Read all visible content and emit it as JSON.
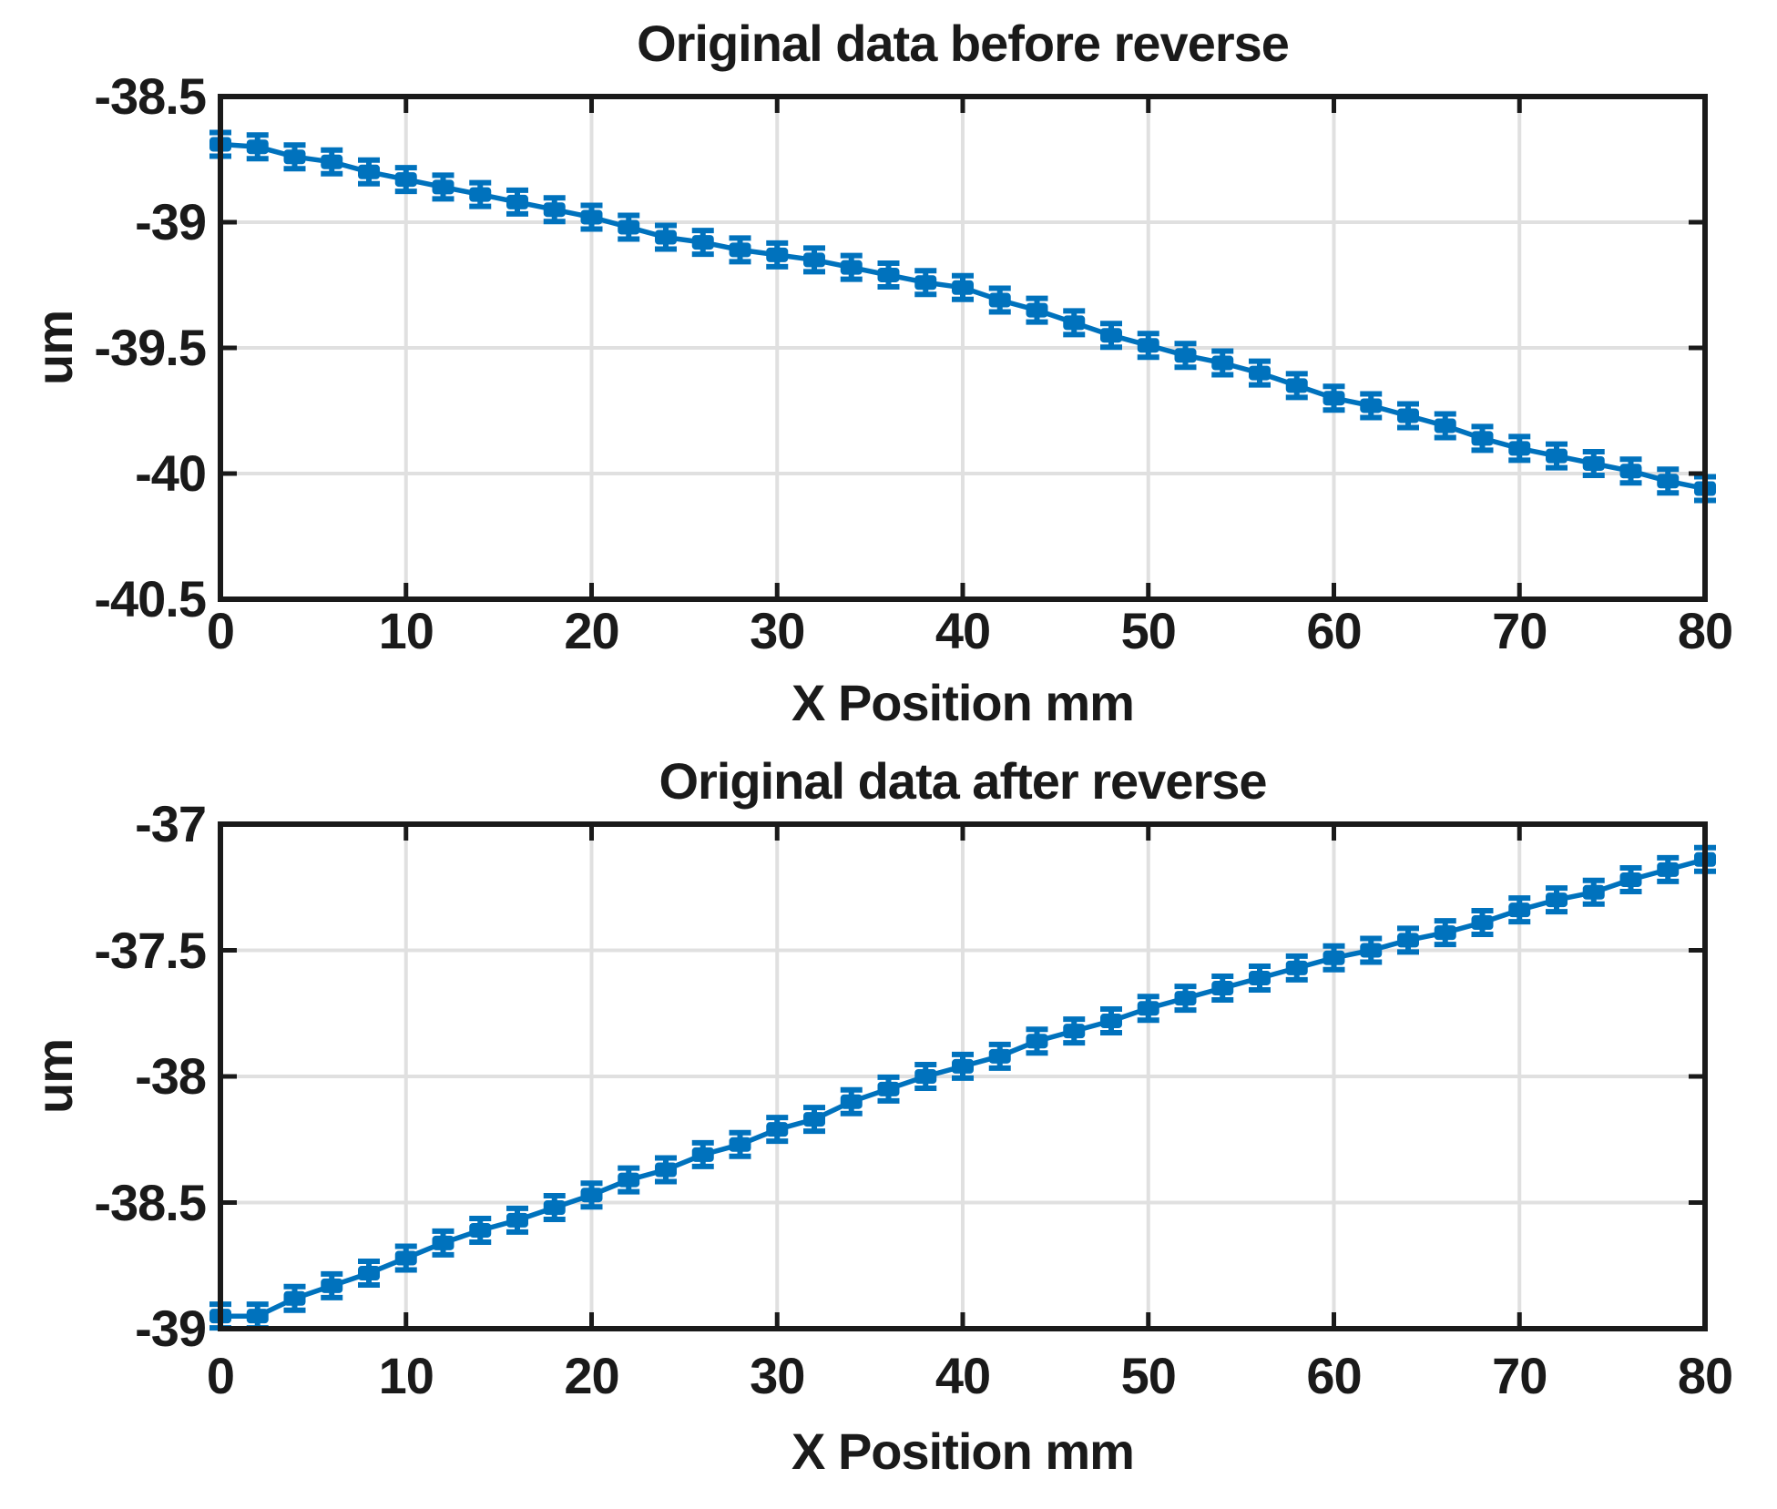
{
  "figure": {
    "background": "#ffffff"
  },
  "colors": {
    "line": "#0072BD",
    "grid": "#e0e0e0",
    "axis": "#1a1a1a",
    "text": "#1a1a1a"
  },
  "chart_data": [
    {
      "type": "line",
      "title": "Original data before reverse",
      "xlabel": "X Position mm",
      "ylabel": "um",
      "xlim": [
        0,
        80
      ],
      "ylim": [
        -40.5,
        -38.5
      ],
      "x_ticks": [
        0,
        10,
        20,
        30,
        40,
        50,
        60,
        70,
        80
      ],
      "y_ticks": [
        -38.5,
        -39,
        -39.5,
        -40,
        -40.5
      ],
      "grid": true,
      "legend_position": "none",
      "marker": "point-with-error-caps",
      "x": [
        0,
        2,
        4,
        6,
        8,
        10,
        12,
        14,
        16,
        18,
        20,
        22,
        24,
        26,
        28,
        30,
        32,
        34,
        36,
        38,
        40,
        42,
        44,
        46,
        48,
        50,
        52,
        54,
        56,
        58,
        60,
        62,
        64,
        66,
        68,
        70,
        72,
        74,
        76,
        78,
        80
      ],
      "y": [
        -38.69,
        -38.7,
        -38.74,
        -38.76,
        -38.8,
        -38.83,
        -38.86,
        -38.89,
        -38.92,
        -38.95,
        -38.98,
        -39.02,
        -39.06,
        -39.08,
        -39.11,
        -39.13,
        -39.15,
        -39.18,
        -39.21,
        -39.24,
        -39.26,
        -39.31,
        -39.35,
        -39.4,
        -39.45,
        -39.49,
        -39.53,
        -39.56,
        -39.6,
        -39.65,
        -39.7,
        -39.73,
        -39.77,
        -39.81,
        -39.86,
        -39.9,
        -39.93,
        -39.96,
        -39.99,
        -40.03,
        -40.06
      ]
    },
    {
      "type": "line",
      "title": "Original data after reverse",
      "xlabel": "X Position mm",
      "ylabel": "um",
      "xlim": [
        0,
        80
      ],
      "ylim": [
        -39,
        -37
      ],
      "x_ticks": [
        0,
        10,
        20,
        30,
        40,
        50,
        60,
        70,
        80
      ],
      "y_ticks": [
        -37,
        -37.5,
        -38,
        -38.5,
        -39
      ],
      "grid": true,
      "legend_position": "none",
      "marker": "point-with-error-caps",
      "x": [
        0,
        2,
        4,
        6,
        8,
        10,
        12,
        14,
        16,
        18,
        20,
        22,
        24,
        26,
        28,
        30,
        32,
        34,
        36,
        38,
        40,
        42,
        44,
        46,
        48,
        50,
        52,
        54,
        56,
        58,
        60,
        62,
        64,
        66,
        68,
        70,
        72,
        74,
        76,
        78,
        80
      ],
      "y": [
        -38.95,
        -38.95,
        -38.88,
        -38.83,
        -38.78,
        -38.72,
        -38.66,
        -38.61,
        -38.57,
        -38.52,
        -38.47,
        -38.41,
        -38.37,
        -38.31,
        -38.27,
        -38.21,
        -38.17,
        -38.1,
        -38.05,
        -38.0,
        -37.96,
        -37.92,
        -37.86,
        -37.82,
        -37.78,
        -37.73,
        -37.69,
        -37.65,
        -37.61,
        -37.57,
        -37.53,
        -37.5,
        -37.46,
        -37.43,
        -37.39,
        -37.34,
        -37.3,
        -37.27,
        -37.22,
        -37.18,
        -37.14
      ]
    }
  ]
}
